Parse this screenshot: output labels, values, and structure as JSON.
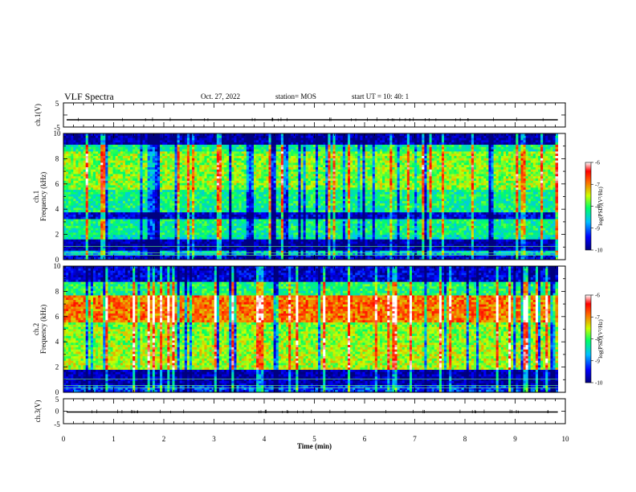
{
  "header": {
    "title": "VLF Spectra",
    "date": "Oct. 27, 2022",
    "station": "station= MOS",
    "start": "start UT =   10: 40: 1"
  },
  "chart_data": [
    {
      "type": "line",
      "panel": "ch1-waveform",
      "ylabel": "ch.1(V)",
      "ylim": [
        -5,
        5
      ],
      "y_ticks": [
        "5",
        "-5"
      ],
      "xlim": [
        0,
        10
      ],
      "series": [
        {
          "values_constant": 0
        }
      ]
    },
    {
      "type": "heatmap",
      "panel": "ch1-spectrogram",
      "ylabel_line1": "ch.1",
      "ylabel_line2": "Frequency (kHz)",
      "ylim": [
        0,
        10
      ],
      "y_ticks": [
        "0",
        "2",
        "4",
        "6",
        "8",
        "10"
      ],
      "xlim": [
        0,
        9.85
      ],
      "colorbar": {
        "label": "log(PSD)(V²/Hz)",
        "range": [
          -10,
          -6
        ],
        "ticks": [
          "-6",
          "-7",
          "-8",
          "-9",
          "-10"
        ]
      },
      "profile_kHz": [
        {
          "f": [
            0.0,
            0.3
          ],
          "level": -9.6
        },
        {
          "f": [
            0.3,
            0.7
          ],
          "level": -8.6
        },
        {
          "f": [
            0.7,
            1.6
          ],
          "level": -9.8
        },
        {
          "f": [
            1.6,
            2.0
          ],
          "level": -8.4
        },
        {
          "f": [
            2.0,
            3.3
          ],
          "level": -8.2
        },
        {
          "f": [
            3.3,
            3.8
          ],
          "level": -9.6
        },
        {
          "f": [
            3.8,
            5.5
          ],
          "level": -8.2
        },
        {
          "f": [
            5.5,
            8.6
          ],
          "level": -7.7
        },
        {
          "f": [
            8.6,
            9.1
          ],
          "level": -8.2
        },
        {
          "f": [
            9.1,
            10.0
          ],
          "level": -9.8
        }
      ]
    },
    {
      "type": "heatmap",
      "panel": "ch2-spectrogram",
      "ylabel_line1": "ch.2",
      "ylabel_line2": "Frequency (kHz)",
      "ylim": [
        0,
        10
      ],
      "y_ticks": [
        "0",
        "2",
        "4",
        "6",
        "8",
        "10"
      ],
      "xlim": [
        0,
        9.85
      ],
      "colorbar": {
        "label": "log(PSD)(V²/Hz)",
        "range": [
          -10,
          -6
        ],
        "ticks": [
          "-6",
          "-7",
          "-8",
          "-9",
          "-10"
        ]
      },
      "profile_kHz": [
        {
          "f": [
            0.0,
            0.6
          ],
          "level": -9.2
        },
        {
          "f": [
            0.6,
            1.8
          ],
          "level": -9.8
        },
        {
          "f": [
            1.8,
            3.8
          ],
          "level": -7.6
        },
        {
          "f": [
            3.8,
            5.5
          ],
          "level": -7.7
        },
        {
          "f": [
            5.5,
            7.6
          ],
          "level": -6.9
        },
        {
          "f": [
            7.6,
            8.8
          ],
          "level": -8.1
        },
        {
          "f": [
            8.8,
            10.0
          ],
          "level": -9.6
        }
      ]
    },
    {
      "type": "line",
      "panel": "ch3-waveform",
      "ylabel": "ch.3(V)",
      "ylim": [
        -5,
        5
      ],
      "y_ticks": [
        "5",
        "0",
        "-5"
      ],
      "xlim": [
        0,
        10
      ],
      "xlabel": "Time (min)",
      "x_ticks": [
        "0",
        "1",
        "2",
        "3",
        "4",
        "5",
        "6",
        "7",
        "8",
        "9",
        "10"
      ],
      "series": [
        {
          "values_constant": 0
        }
      ]
    }
  ]
}
